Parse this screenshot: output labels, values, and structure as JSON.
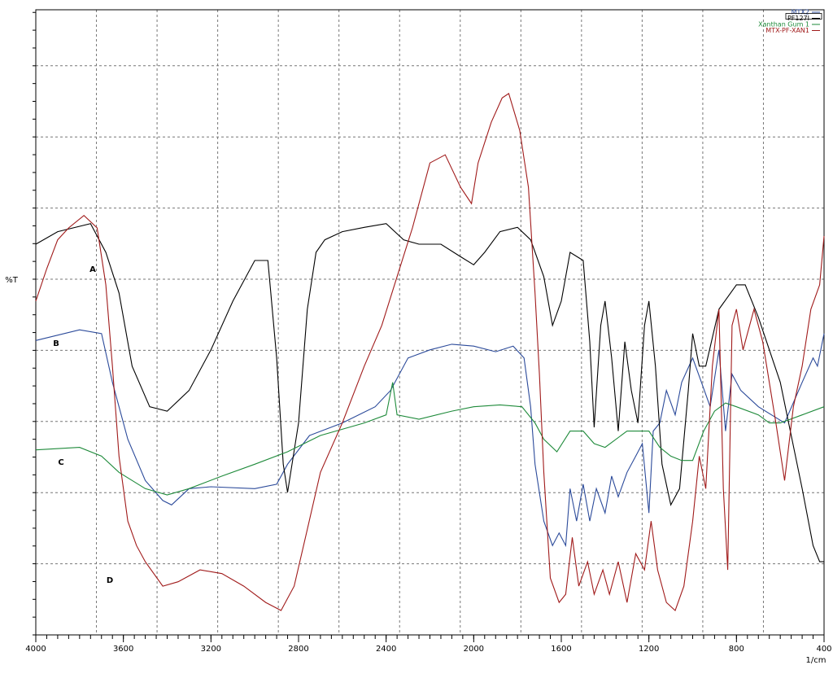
{
  "chart_data": {
    "type": "line",
    "x_label": "1/cm",
    "y_label": "%T",
    "xlim": [
      4000,
      400
    ],
    "ylim": [
      0,
      100
    ],
    "xticks": [
      4000,
      3600,
      3200,
      2800,
      2400,
      2000,
      1600,
      1200,
      800,
      400
    ],
    "grid": true,
    "legend": "top-right",
    "annotations": [
      "A",
      "B",
      "C",
      "D"
    ],
    "series": [
      {
        "name": "MTX2",
        "color": "#2b4a9a",
        "x": [
          4000,
          3800,
          3700,
          3650,
          3580,
          3500,
          3420,
          3380,
          3300,
          3200,
          3000,
          2900,
          2850,
          2750,
          2600,
          2450,
          2380,
          2300,
          2200,
          2100,
          2000,
          1900,
          1820,
          1770,
          1740,
          1720,
          1680,
          1640,
          1610,
          1580,
          1560,
          1530,
          1500,
          1470,
          1440,
          1400,
          1370,
          1340,
          1300,
          1260,
          1230,
          1200,
          1180,
          1150,
          1120,
          1080,
          1050,
          1000,
          960,
          920,
          880,
          850,
          820,
          780,
          700,
          640,
          580,
          500,
          450,
          430,
          400
        ],
        "values": [
          47.1,
          48.8,
          48.2,
          40.4,
          31.3,
          24.7,
          21.5,
          20.8,
          23.4,
          23.7,
          23.4,
          24.1,
          27.3,
          31.9,
          33.9,
          36.5,
          39.1,
          44.3,
          45.6,
          46.5,
          46.2,
          45.3,
          46.2,
          44.3,
          36.5,
          27.3,
          18.2,
          14.3,
          16.3,
          14.3,
          23.4,
          18.2,
          24.1,
          18.2,
          23.4,
          19.5,
          25.4,
          22.1,
          26,
          28.6,
          30.6,
          19.5,
          32.6,
          33.9,
          39.1,
          35.2,
          40.4,
          44.3,
          40.4,
          36.5,
          45.6,
          32.6,
          41.7,
          39.1,
          36.5,
          35.2,
          33.9,
          40.4,
          44.3,
          43,
          48.2
        ]
      },
      {
        "name": "PF127I",
        "color": "#000000",
        "x": [
          4000,
          3900,
          3750,
          3680,
          3620,
          3560,
          3480,
          3400,
          3300,
          3200,
          3100,
          3000,
          2940,
          2900,
          2870,
          2850,
          2800,
          2760,
          2720,
          2680,
          2600,
          2500,
          2400,
          2320,
          2250,
          2150,
          2060,
          2000,
          1950,
          1880,
          1800,
          1740,
          1680,
          1640,
          1600,
          1560,
          1500,
          1470,
          1450,
          1420,
          1400,
          1370,
          1340,
          1310,
          1280,
          1250,
          1220,
          1200,
          1170,
          1140,
          1100,
          1060,
          1020,
          1000,
          970,
          940,
          880,
          800,
          760,
          700,
          600,
          500,
          450,
          420,
          400
        ],
        "values": [
          62.5,
          64.5,
          65.8,
          61.2,
          54.7,
          43,
          36.5,
          35.8,
          39.1,
          45.6,
          53.4,
          59.9,
          59.9,
          44.3,
          27.3,
          22.8,
          33.9,
          52.1,
          61.2,
          63.2,
          64.5,
          65.2,
          65.8,
          63.2,
          62.5,
          62.5,
          60.5,
          59.2,
          61.2,
          64.5,
          65.2,
          63.2,
          57.3,
          49.5,
          53.4,
          61.2,
          59.9,
          46.9,
          33.2,
          49.5,
          53.4,
          44.3,
          32.6,
          46.9,
          39.1,
          33.9,
          49.5,
          53.4,
          43,
          27.3,
          20.8,
          23.4,
          39.1,
          48.2,
          43,
          43,
          52.1,
          56,
          56,
          50.8,
          40.4,
          23.4,
          14.3,
          11.7,
          11.7
        ]
      },
      {
        "name": "Xanthan Gum 1",
        "color": "#1e8a3a",
        "x": [
          4000,
          3800,
          3700,
          3620,
          3500,
          3400,
          3300,
          3150,
          3000,
          2850,
          2700,
          2500,
          2400,
          2370,
          2350,
          2250,
          2100,
          2000,
          1880,
          1780,
          1720,
          1680,
          1620,
          1560,
          1500,
          1450,
          1400,
          1300,
          1200,
          1150,
          1100,
          1050,
          1000,
          950,
          900,
          850,
          800,
          700,
          650,
          600,
          500,
          400
        ],
        "values": [
          29.6,
          30,
          28.6,
          26,
          23.4,
          22.4,
          23.4,
          25.4,
          27.3,
          29.3,
          31.9,
          33.9,
          35.2,
          40.4,
          35.2,
          34.5,
          35.8,
          36.5,
          36.8,
          36.5,
          33.9,
          31.3,
          29.3,
          32.6,
          32.6,
          30.6,
          30,
          32.6,
          32.6,
          30,
          28.6,
          27.9,
          27.9,
          32.6,
          35.8,
          37.1,
          36.5,
          35.2,
          33.9,
          33.9,
          35.2,
          36.5
        ]
      },
      {
        "name": "MTX-PF-XAN1",
        "color": "#a01a1a",
        "x": [
          4000,
          3950,
          3900,
          3850,
          3780,
          3720,
          3680,
          3650,
          3620,
          3580,
          3540,
          3500,
          3420,
          3350,
          3250,
          3150,
          3050,
          2950,
          2880,
          2820,
          2760,
          2700,
          2600,
          2500,
          2420,
          2350,
          2280,
          2200,
          2130,
          2060,
          2010,
          1980,
          1920,
          1870,
          1840,
          1790,
          1750,
          1720,
          1700,
          1680,
          1650,
          1610,
          1580,
          1550,
          1520,
          1480,
          1450,
          1410,
          1380,
          1340,
          1300,
          1260,
          1220,
          1190,
          1160,
          1120,
          1080,
          1040,
          1000,
          970,
          940,
          910,
          880,
          860,
          840,
          820,
          800,
          770,
          720,
          680,
          620,
          580,
          540,
          500,
          460,
          420,
          400
        ],
        "values": [
          53.4,
          58.6,
          63.2,
          65.1,
          67.1,
          65.1,
          56,
          43,
          28.6,
          18.2,
          14.3,
          11.7,
          7.8,
          8.5,
          10.4,
          9.8,
          7.8,
          5.2,
          3.9,
          7.8,
          16.9,
          26,
          33.9,
          43,
          49.5,
          57.3,
          65.1,
          75.5,
          76.8,
          71.6,
          69,
          75.5,
          82,
          85.9,
          86.6,
          80.7,
          71.6,
          54.7,
          41.7,
          26,
          9.1,
          5.2,
          6.5,
          15.6,
          7.8,
          11.7,
          6.5,
          10.4,
          6.5,
          11.7,
          5.2,
          13,
          10.4,
          18.2,
          10.4,
          5.2,
          3.9,
          7.8,
          18.2,
          28.6,
          23.4,
          43,
          52.1,
          23.4,
          10.4,
          49.5,
          52.1,
          45.6,
          52.1,
          46.9,
          33.9,
          24.7,
          36.5,
          43,
          52.1,
          56,
          63.8
        ]
      }
    ]
  }
}
